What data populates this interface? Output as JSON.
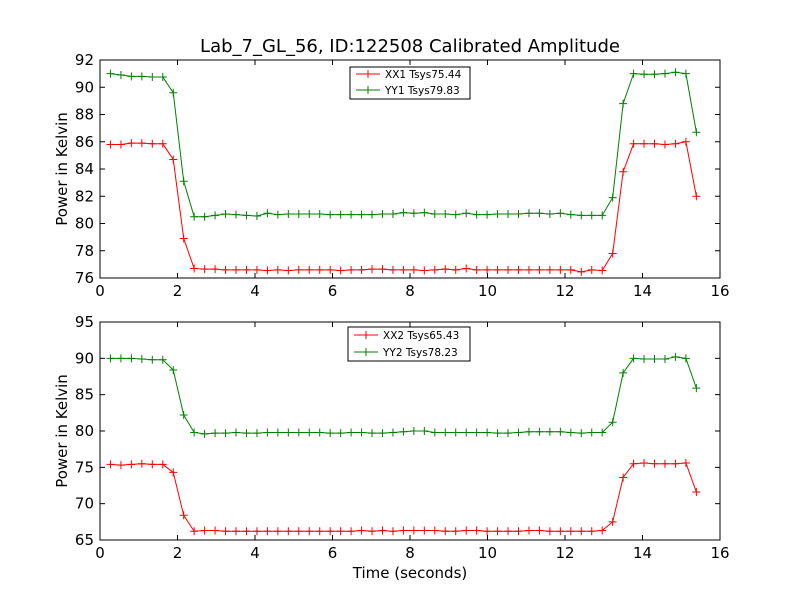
{
  "chart_data": [
    {
      "type": "line",
      "title": "Lab_7_GL_56, ID:122508 Calibrated Amplitude",
      "xlabel": "",
      "ylabel": "Power in Kelvin",
      "xlim": [
        0,
        16
      ],
      "ylim": [
        76,
        92
      ],
      "xticks": [
        0,
        2,
        4,
        6,
        8,
        10,
        12,
        14,
        16
      ],
      "yticks": [
        76,
        78,
        80,
        82,
        84,
        86,
        88,
        90,
        92
      ],
      "grid": false,
      "legend_placement": "upper center",
      "x": [
        0.27,
        0.54,
        0.81,
        1.08,
        1.35,
        1.62,
        1.89,
        2.16,
        2.43,
        2.7,
        2.97,
        3.24,
        3.51,
        3.78,
        4.05,
        4.32,
        4.59,
        4.86,
        5.13,
        5.4,
        5.67,
        5.94,
        6.21,
        6.48,
        6.75,
        7.02,
        7.29,
        7.56,
        7.83,
        8.1,
        8.37,
        8.64,
        8.91,
        9.18,
        9.45,
        9.72,
        9.99,
        10.26,
        10.53,
        10.8,
        11.07,
        11.34,
        11.61,
        11.88,
        12.15,
        12.42,
        12.69,
        12.96,
        13.23,
        13.5,
        13.77,
        14.04,
        14.31,
        14.58,
        14.85,
        15.12,
        15.39
      ],
      "series": [
        {
          "name": "XX1 Tsys75.44",
          "color": "#ff0000",
          "values": [
            85.8,
            85.8,
            85.9,
            85.9,
            85.85,
            85.85,
            84.7,
            78.9,
            76.7,
            76.65,
            76.65,
            76.6,
            76.6,
            76.6,
            76.6,
            76.55,
            76.6,
            76.55,
            76.6,
            76.6,
            76.6,
            76.6,
            76.55,
            76.6,
            76.6,
            76.65,
            76.65,
            76.6,
            76.6,
            76.6,
            76.55,
            76.6,
            76.65,
            76.6,
            76.7,
            76.6,
            76.6,
            76.6,
            76.6,
            76.6,
            76.6,
            76.6,
            76.6,
            76.6,
            76.6,
            76.45,
            76.6,
            76.55,
            77.8,
            83.8,
            85.85,
            85.85,
            85.85,
            85.8,
            85.85,
            86.0,
            82.0
          ]
        },
        {
          "name": "YY1 Tsys79.83",
          "color": "#008000",
          "values": [
            91.0,
            90.9,
            90.8,
            90.8,
            90.75,
            90.75,
            89.6,
            83.1,
            80.5,
            80.5,
            80.6,
            80.7,
            80.65,
            80.6,
            80.55,
            80.75,
            80.65,
            80.7,
            80.7,
            80.7,
            80.7,
            80.65,
            80.65,
            80.65,
            80.65,
            80.65,
            80.7,
            80.7,
            80.8,
            80.75,
            80.8,
            80.7,
            80.7,
            80.65,
            80.75,
            80.65,
            80.65,
            80.7,
            80.7,
            80.7,
            80.75,
            80.75,
            80.7,
            80.75,
            80.65,
            80.6,
            80.6,
            80.6,
            81.9,
            88.8,
            91.0,
            90.95,
            90.95,
            91.0,
            91.1,
            91.0,
            86.7
          ]
        }
      ]
    },
    {
      "type": "line",
      "title": "",
      "xlabel": "Time (seconds)",
      "ylabel": "Power in Kelvin",
      "xlim": [
        0,
        16
      ],
      "ylim": [
        65,
        95
      ],
      "xticks": [
        0,
        2,
        4,
        6,
        8,
        10,
        12,
        14,
        16
      ],
      "yticks": [
        65,
        70,
        75,
        80,
        85,
        90,
        95
      ],
      "grid": false,
      "legend_placement": "upper center",
      "x": [
        0.27,
        0.54,
        0.81,
        1.08,
        1.35,
        1.62,
        1.89,
        2.16,
        2.43,
        2.7,
        2.97,
        3.24,
        3.51,
        3.78,
        4.05,
        4.32,
        4.59,
        4.86,
        5.13,
        5.4,
        5.67,
        5.94,
        6.21,
        6.48,
        6.75,
        7.02,
        7.29,
        7.56,
        7.83,
        8.1,
        8.37,
        8.64,
        8.91,
        9.18,
        9.45,
        9.72,
        9.99,
        10.26,
        10.53,
        10.8,
        11.07,
        11.34,
        11.61,
        11.88,
        12.15,
        12.42,
        12.69,
        12.96,
        13.23,
        13.5,
        13.77,
        14.04,
        14.31,
        14.58,
        14.85,
        15.12,
        15.39
      ],
      "series": [
        {
          "name": "XX2 Tsys65.43",
          "color": "#ff0000",
          "values": [
            75.4,
            75.3,
            75.4,
            75.5,
            75.4,
            75.4,
            74.3,
            68.4,
            66.2,
            66.3,
            66.3,
            66.2,
            66.2,
            66.2,
            66.2,
            66.2,
            66.2,
            66.2,
            66.2,
            66.2,
            66.2,
            66.2,
            66.2,
            66.2,
            66.3,
            66.2,
            66.3,
            66.2,
            66.3,
            66.3,
            66.3,
            66.3,
            66.2,
            66.2,
            66.3,
            66.3,
            66.2,
            66.2,
            66.2,
            66.2,
            66.3,
            66.3,
            66.2,
            66.2,
            66.2,
            66.2,
            66.2,
            66.3,
            67.5,
            73.6,
            75.5,
            75.6,
            75.5,
            75.5,
            75.5,
            75.6,
            71.6
          ]
        },
        {
          "name": "YY2 Tsys78.23",
          "color": "#008000",
          "values": [
            90.0,
            90.0,
            90.0,
            89.9,
            89.8,
            89.8,
            88.4,
            82.2,
            79.8,
            79.6,
            79.7,
            79.7,
            79.8,
            79.7,
            79.7,
            79.8,
            79.8,
            79.8,
            79.8,
            79.8,
            79.8,
            79.7,
            79.7,
            79.8,
            79.8,
            79.7,
            79.7,
            79.8,
            79.9,
            80.0,
            80.0,
            79.8,
            79.8,
            79.8,
            79.8,
            79.8,
            79.8,
            79.7,
            79.7,
            79.8,
            79.9,
            79.9,
            79.9,
            79.9,
            79.8,
            79.7,
            79.8,
            79.8,
            81.2,
            88.0,
            90.0,
            89.9,
            89.9,
            89.9,
            90.2,
            90.0,
            85.9
          ]
        }
      ]
    }
  ]
}
